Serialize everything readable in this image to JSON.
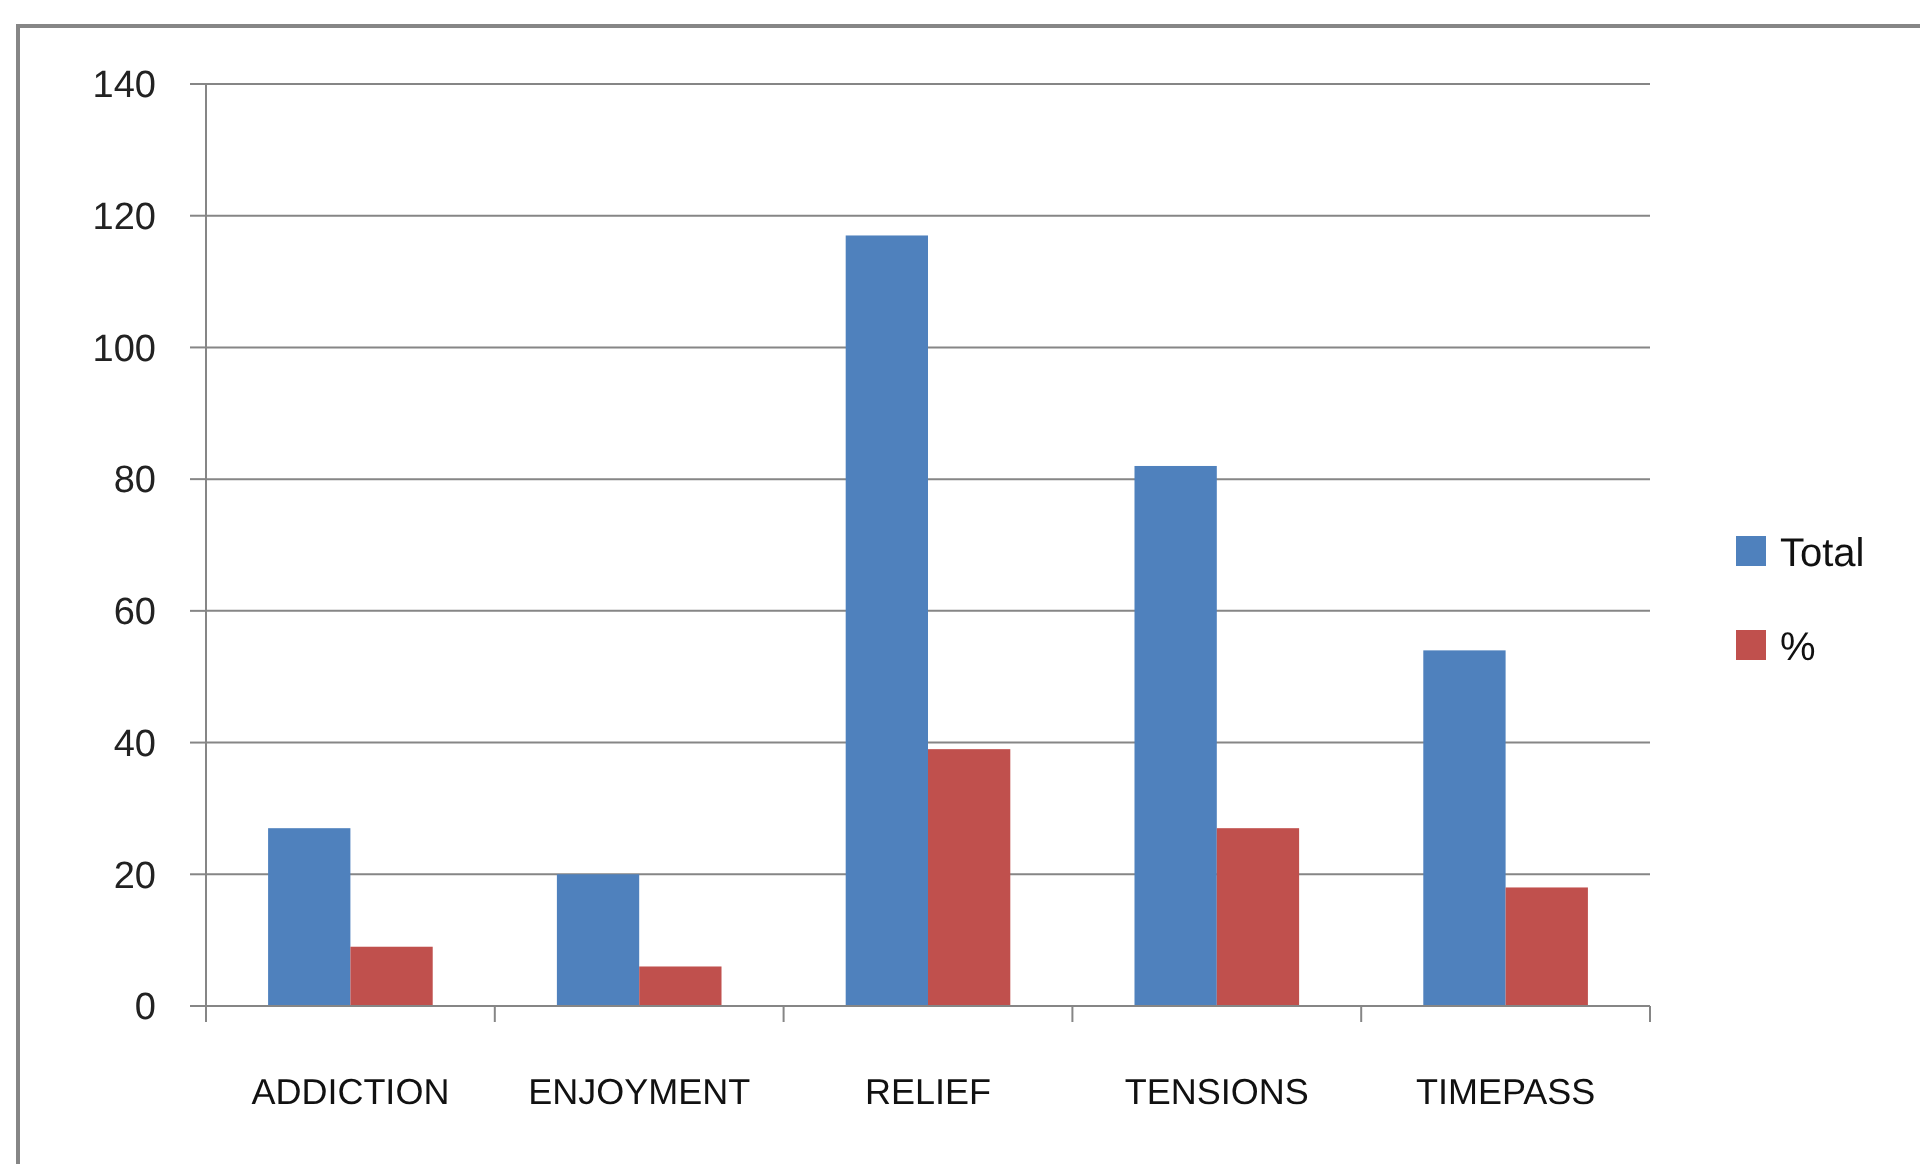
{
  "chart_data": {
    "type": "bar",
    "categories": [
      "ADDICTION",
      "ENJOYMENT",
      "RELIEF",
      "TENSIONS",
      "TIMEPASS"
    ],
    "series": [
      {
        "name": "Total",
        "color": "#4f81bd",
        "values": [
          27,
          20,
          117,
          82,
          54
        ]
      },
      {
        "name": "%",
        "color": "#c0504d",
        "values": [
          9,
          6,
          39,
          27,
          18
        ]
      }
    ],
    "ylim": [
      0,
      140
    ],
    "yticks": [
      0,
      20,
      40,
      60,
      80,
      100,
      120,
      140
    ],
    "grid": "y",
    "legend": "right"
  }
}
